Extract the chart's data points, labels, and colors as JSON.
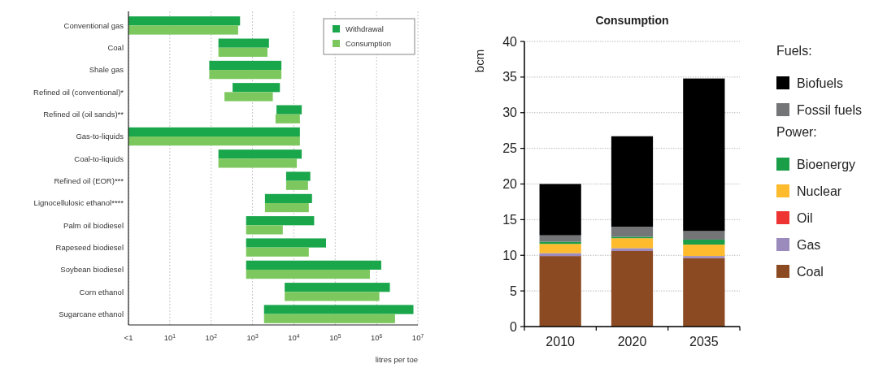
{
  "chart_data": [
    {
      "type": "bar",
      "orientation": "horizontal",
      "log": "x",
      "xlabel": "litres per toe",
      "categories": [
        "Conventional gas",
        "Coal",
        "Shale gas",
        "Refined oil (conventional)*",
        "Refined oil (oil sands)**",
        "Gas-to-liquids",
        "Coal-to-liquids",
        "Refined oil (EOR)***",
        "Lignocellulosic ethanol****",
        "Palm oil biodiesel",
        "Rapeseed biodiesel",
        "Soybean biodiesel",
        "Corn ethanol",
        "Sugarcane ethanol"
      ],
      "xlim": [
        1,
        10000000
      ],
      "xticks": [
        {
          "value": 1,
          "label": "<1"
        },
        {
          "value": 10,
          "label": "10$^{1}$"
        },
        {
          "value": 100,
          "label": "10$^{2}$"
        },
        {
          "value": 1000,
          "label": "10$^{3}$"
        },
        {
          "value": 10000,
          "label": "10$^{4}$"
        },
        {
          "value": 100000,
          "label": "10$^{5}$"
        },
        {
          "value": 1000000,
          "label": "10$^{6}$"
        },
        {
          "value": 10000000,
          "label": "10$^{7}$"
        }
      ],
      "grid": "x",
      "legend": "top right",
      "series": [
        {
          "name": "Withdrawal",
          "color": "#1aa64b",
          "base": [
            1,
            150,
            90,
            330,
            3800,
            1,
            150,
            6500,
            2000,
            700,
            700,
            700,
            6000,
            1900
          ],
          "values": [
            499,
            2350,
            4910,
            4270,
            11700,
            13999,
            15350,
            18500,
            25500,
            30300,
            59300,
            1299300,
            2094000,
            7798100
          ]
        },
        {
          "name": "Consumption",
          "color": "#7dc85e",
          "base": [
            1,
            150,
            90,
            210,
            3600,
            1,
            150,
            6500,
            2000,
            700,
            700,
            700,
            6000,
            1900
          ],
          "values": [
            449,
            2150,
            4910,
            2890,
            10400,
            13999,
            11650,
            15500,
            21000,
            4700,
            22300,
            689300,
            1164000,
            2798100
          ]
        }
      ]
    },
    {
      "type": "bar",
      "stacked": true,
      "title": "Consumption",
      "ylabel": "bcm",
      "categories": [
        "2010",
        "2020",
        "2035"
      ],
      "ylim": [
        0,
        40
      ],
      "yticks": [
        0,
        5,
        10,
        15,
        20,
        25,
        30,
        35,
        40
      ],
      "grid": "y",
      "legend": "right",
      "annotations": [
        "Fuels:",
        "Power:"
      ],
      "series": [
        {
          "name": "Coal",
          "color": "#8b4a22",
          "values": [
            9.9,
            10.6,
            9.6
          ]
        },
        {
          "name": "Gas",
          "color": "#9b8bbd",
          "values": [
            0.4,
            0.4,
            0.3
          ]
        },
        {
          "name": "Oil",
          "color": "#ee3333",
          "values": [
            0,
            0,
            0
          ]
        },
        {
          "name": "Nuclear",
          "color": "#fdbb2d",
          "values": [
            1.3,
            1.4,
            1.6
          ]
        },
        {
          "name": "Bioenergy",
          "color": "#1a9e48",
          "values": [
            0.3,
            0.2,
            0.7
          ]
        },
        {
          "name": "Fossil fuels",
          "color": "#737577",
          "values": [
            0.9,
            1.4,
            1.2
          ]
        },
        {
          "name": "Biofuels",
          "color": "#000000",
          "values": [
            7.2,
            12.7,
            21.4
          ]
        }
      ]
    }
  ]
}
